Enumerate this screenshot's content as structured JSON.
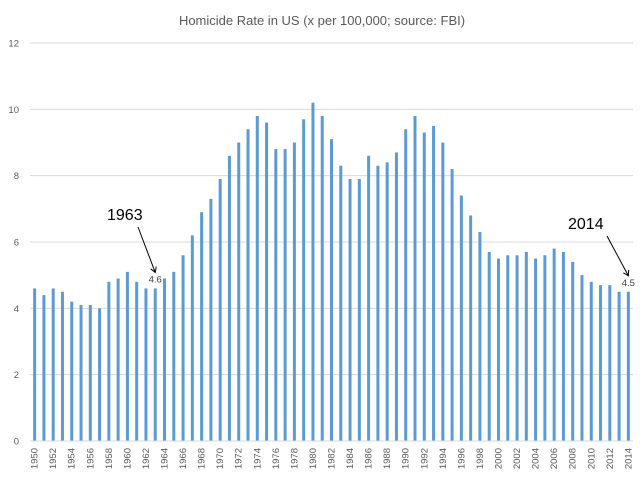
{
  "chart_data": {
    "type": "bar",
    "title": "Homicide Rate in US (x per 100,000; source: FBI)",
    "xlabel": "",
    "ylabel": "",
    "ylim": [
      0,
      12
    ],
    "yticks": [
      0,
      2,
      4,
      6,
      8,
      10,
      12
    ],
    "grid": true,
    "bar_color": "#5b9bd5",
    "categories": [
      "1950",
      "1951",
      "1952",
      "1953",
      "1954",
      "1955",
      "1956",
      "1957",
      "1958",
      "1959",
      "1960",
      "1961",
      "1962",
      "1963",
      "1964",
      "1965",
      "1966",
      "1967",
      "1968",
      "1969",
      "1970",
      "1971",
      "1972",
      "1973",
      "1974",
      "1975",
      "1976",
      "1977",
      "1978",
      "1979",
      "1980",
      "1981",
      "1982",
      "1983",
      "1984",
      "1985",
      "1986",
      "1987",
      "1988",
      "1989",
      "1990",
      "1991",
      "1992",
      "1993",
      "1994",
      "1995",
      "1996",
      "1997",
      "1998",
      "1999",
      "2000",
      "2001",
      "2002",
      "2003",
      "2004",
      "2005",
      "2006",
      "2007",
      "2008",
      "2009",
      "2010",
      "2011",
      "2012",
      "2013",
      "2014"
    ],
    "tick_labels": [
      "1950",
      "1952",
      "1954",
      "1956",
      "1958",
      "1960",
      "1962",
      "1964",
      "1966",
      "1968",
      "1970",
      "1972",
      "1974",
      "1976",
      "1978",
      "1980",
      "1982",
      "1984",
      "1986",
      "1988",
      "1990",
      "1992",
      "1994",
      "1996",
      "1998",
      "2000",
      "2002",
      "2004",
      "2006",
      "2008",
      "2010",
      "2012",
      "2014"
    ],
    "values": [
      4.6,
      4.4,
      4.6,
      4.5,
      4.2,
      4.1,
      4.1,
      4.0,
      4.8,
      4.9,
      5.1,
      4.8,
      4.6,
      4.6,
      4.9,
      5.1,
      5.6,
      6.2,
      6.9,
      7.3,
      7.9,
      8.6,
      9.0,
      9.4,
      9.8,
      9.6,
      8.8,
      8.8,
      9.0,
      9.7,
      10.2,
      9.8,
      9.1,
      8.3,
      7.9,
      7.9,
      8.6,
      8.3,
      8.4,
      8.7,
      9.4,
      9.8,
      9.3,
      9.5,
      9.0,
      8.2,
      7.4,
      6.8,
      6.3,
      5.7,
      5.5,
      5.6,
      5.6,
      5.7,
      5.5,
      5.6,
      5.8,
      5.7,
      5.4,
      5.0,
      4.8,
      4.7,
      4.7,
      4.5,
      4.5
    ],
    "annotations": [
      {
        "year_label": "1963",
        "value_label": "4.6",
        "category": "1963"
      },
      {
        "year_label": "2014",
        "value_label": "4.5",
        "category": "2014"
      }
    ]
  }
}
